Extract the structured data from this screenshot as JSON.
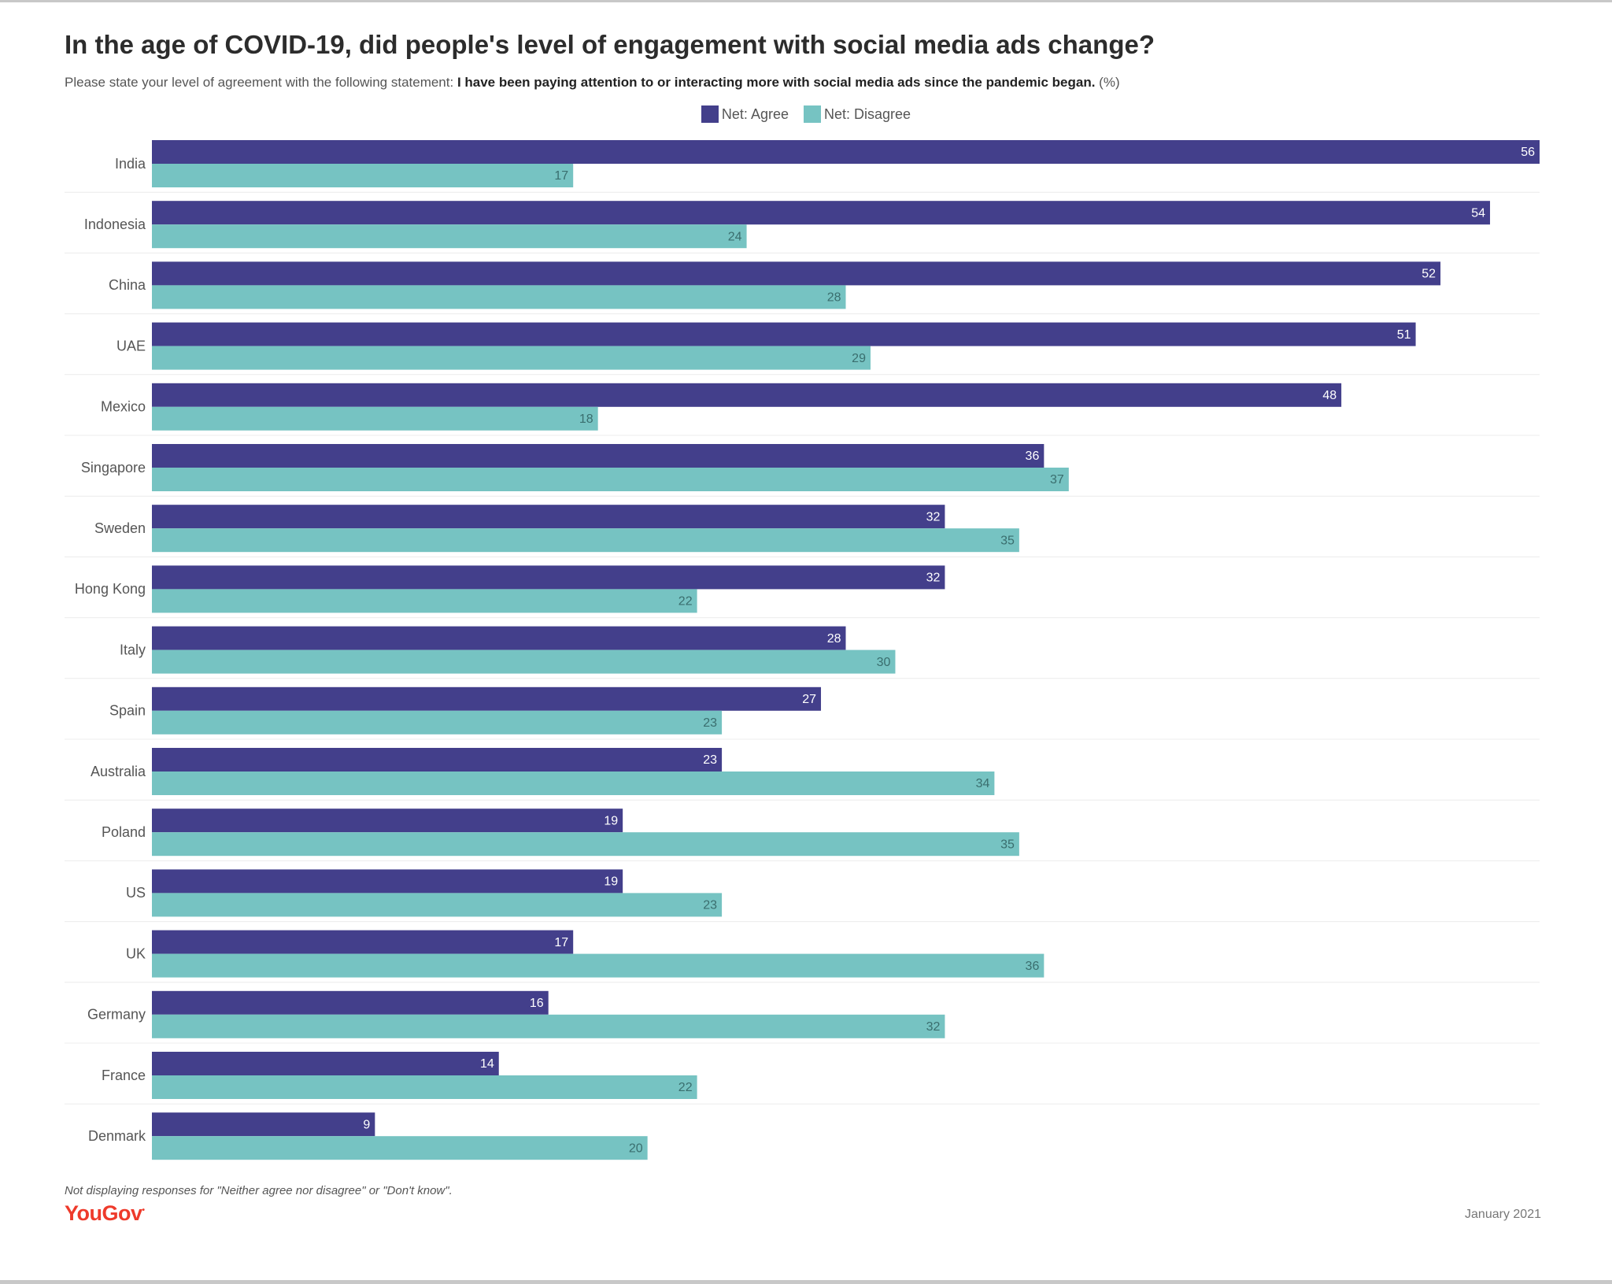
{
  "header": {
    "title": "In the age of COVID-19, did people's level of engagement with social media ads change?",
    "subtitle_prefix": "Please state your level of agreement with the following statement: ",
    "subtitle_bold": "I have been paying attention to or interacting more with social media ads since the pandemic began.",
    "subtitle_suffix": " (%)"
  },
  "legend": {
    "items": [
      {
        "label": "Net: Agree",
        "color": "#433f8b"
      },
      {
        "label": "Net: Disagree",
        "color": "#76c3c2"
      }
    ]
  },
  "chart_data": {
    "type": "bar",
    "orientation": "horizontal",
    "categories": [
      "India",
      "Indonesia",
      "China",
      "UAE",
      "Mexico",
      "Singapore",
      "Sweden",
      "Hong Kong",
      "Italy",
      "Spain",
      "Australia",
      "Poland",
      "US",
      "UK",
      "Germany",
      "France",
      "Denmark"
    ],
    "series": [
      {
        "name": "Net: Agree",
        "color": "#433f8b",
        "label_color": "#ffffff",
        "values": [
          56,
          54,
          52,
          51,
          48,
          36,
          32,
          32,
          28,
          27,
          23,
          19,
          19,
          17,
          16,
          14,
          9
        ]
      },
      {
        "name": "Net: Disagree",
        "color": "#76c3c2",
        "label_color": "#3a6e6e",
        "values": [
          17,
          24,
          28,
          29,
          18,
          37,
          35,
          22,
          30,
          23,
          34,
          35,
          23,
          36,
          32,
          22,
          20
        ]
      }
    ],
    "xlim": [
      0,
      56
    ],
    "legend_position": "top-center",
    "grid": false,
    "data_labels": true
  },
  "footer": {
    "note": "Not displaying responses for \"Neither agree nor disagree\" or \"Don't know\".",
    "brand": "YouGov",
    "date": "January 2021"
  }
}
